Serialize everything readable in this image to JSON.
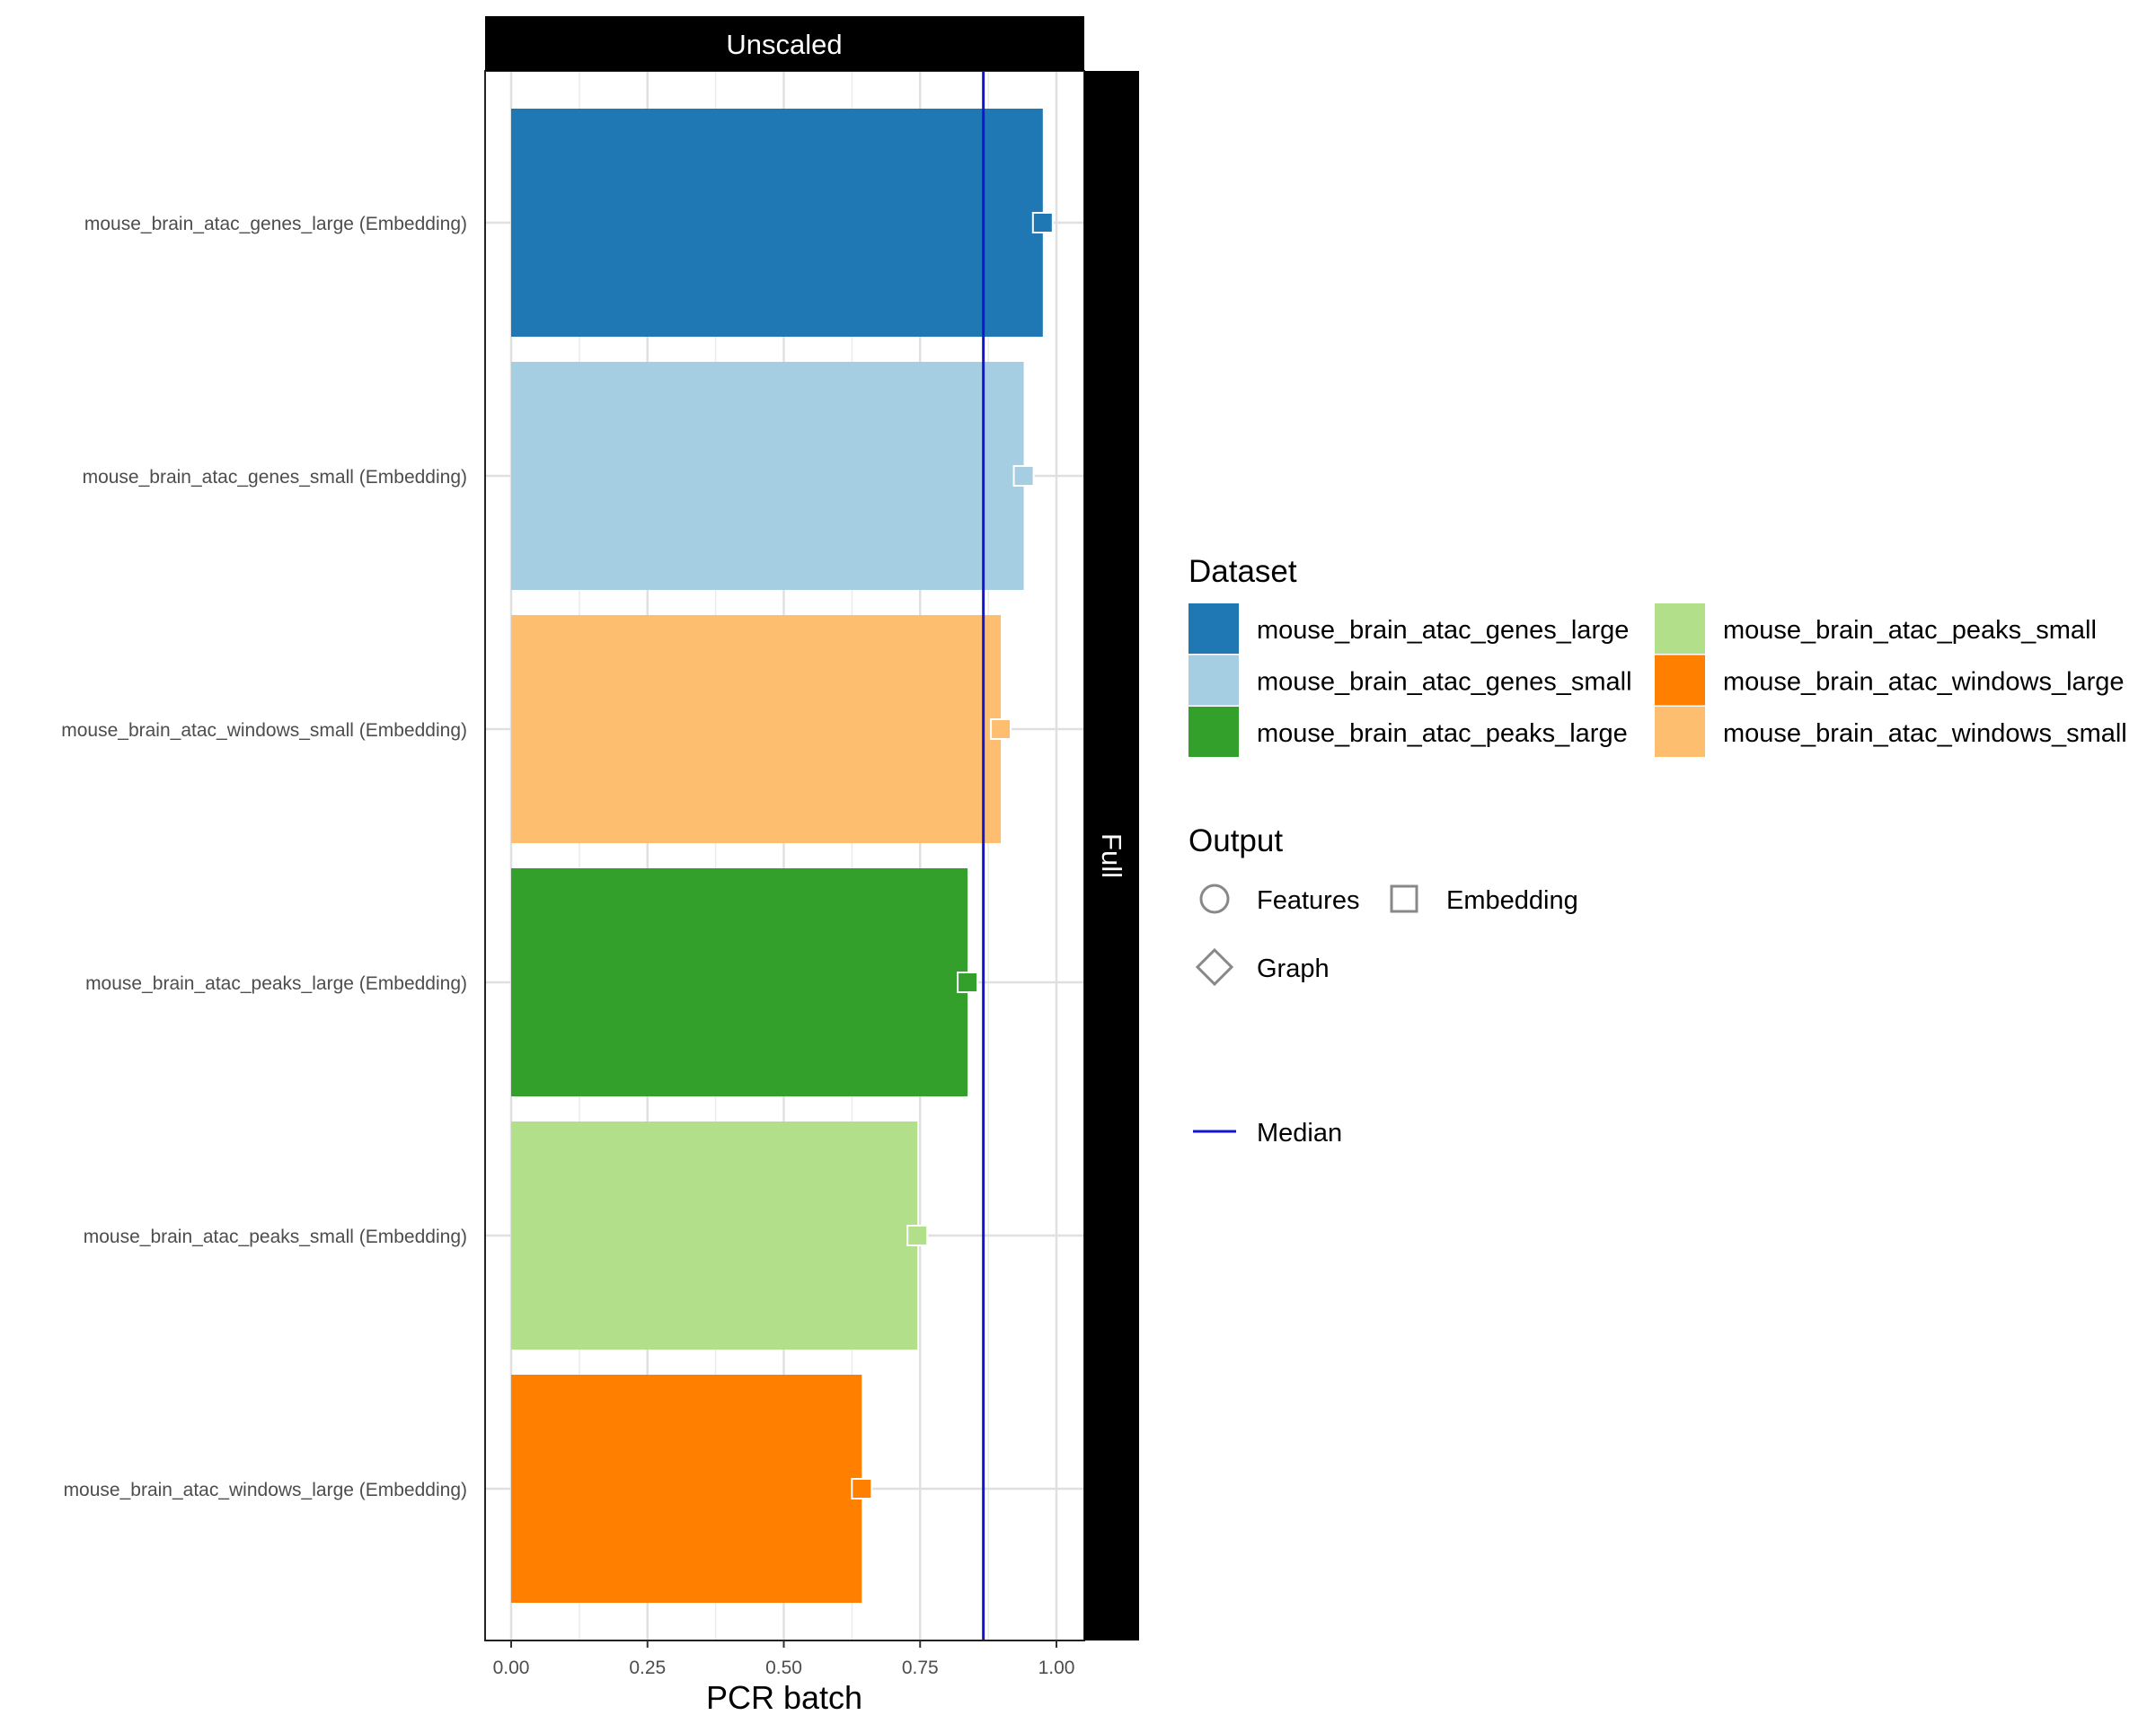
{
  "chart_data": {
    "type": "bar",
    "orientation": "horizontal",
    "facet_top": "Unscaled",
    "facet_right": "Full",
    "xlabel": "PCR batch",
    "ylabel": "",
    "xlim": [
      0,
      1.05
    ],
    "x_ticks": [
      0,
      0.25,
      0.5,
      0.75,
      1.0
    ],
    "x_tick_labels": [
      "0.00",
      "0.25",
      "0.50",
      "0.75",
      "1.00"
    ],
    "grid": true,
    "median": 0.866,
    "categories": [
      "mouse_brain_atac_genes_large (Embedding)",
      "mouse_brain_atac_genes_small (Embedding)",
      "mouse_brain_atac_windows_small (Embedding)",
      "mouse_brain_atac_peaks_large (Embedding)",
      "mouse_brain_atac_peaks_small (Embedding)",
      "mouse_brain_atac_windows_large (Embedding)"
    ],
    "values": [
      0.975,
      0.94,
      0.898,
      0.837,
      0.745,
      0.643
    ],
    "datasets": [
      "mouse_brain_atac_genes_large",
      "mouse_brain_atac_genes_small",
      "mouse_brain_atac_windows_small",
      "mouse_brain_atac_peaks_large",
      "mouse_brain_atac_peaks_small",
      "mouse_brain_atac_windows_large"
    ],
    "outputs": [
      "Embedding",
      "Embedding",
      "Embedding",
      "Embedding",
      "Embedding",
      "Embedding"
    ],
    "legend": {
      "position": "right",
      "dataset_title": "Dataset",
      "dataset_entries": [
        {
          "label": "mouse_brain_atac_genes_large",
          "color": "#1F78B4"
        },
        {
          "label": "mouse_brain_atac_genes_small",
          "color": "#A6CEE3"
        },
        {
          "label": "mouse_brain_atac_peaks_large",
          "color": "#33A02C"
        },
        {
          "label": "mouse_brain_atac_peaks_small",
          "color": "#B2DF8A"
        },
        {
          "label": "mouse_brain_atac_windows_large",
          "color": "#FF7F00"
        },
        {
          "label": "mouse_brain_atac_windows_small",
          "color": "#FDBF6F"
        }
      ],
      "output_title": "Output",
      "output_entries": [
        {
          "label": "Features",
          "shape": "circle"
        },
        {
          "label": "Embedding",
          "shape": "square"
        },
        {
          "label": "Graph",
          "shape": "diamond"
        }
      ],
      "median_label": "Median",
      "median_color": "#1515D8"
    }
  }
}
